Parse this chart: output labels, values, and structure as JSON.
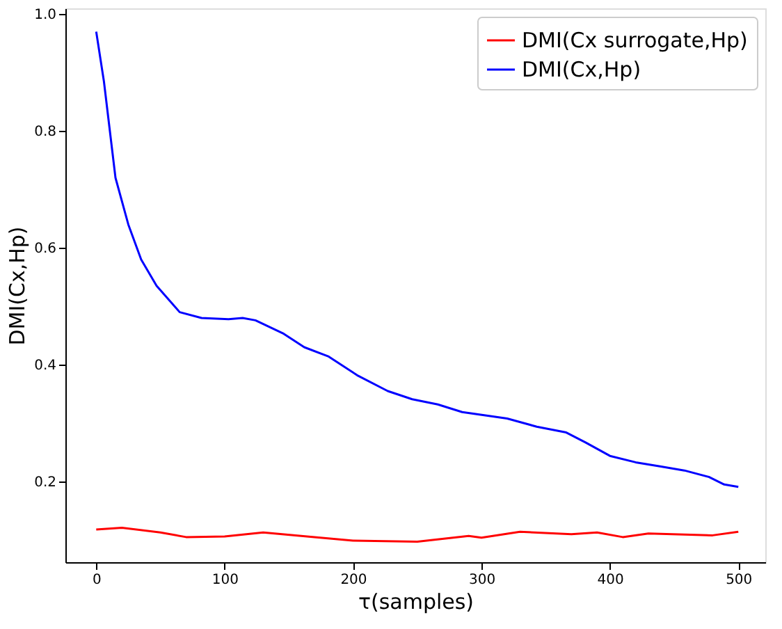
{
  "chart_data": {
    "type": "line",
    "xlabel": "τ(samples)",
    "ylabel": "DMI(Cx,Hp)",
    "xlim": [
      -24,
      521
    ],
    "ylim": [
      0.062,
      1.01
    ],
    "xticks": [
      0,
      100,
      200,
      300,
      400,
      500
    ],
    "yticks": [
      0.2,
      0.4,
      0.6,
      0.8,
      {
        "value": 1,
        "label": "1.0"
      }
    ],
    "line_style": "solid",
    "grid": false,
    "legend": "top right",
    "series": [
      {
        "name": "DMI(Cx surrogate,Hp)",
        "color": "#ff0000",
        "x": [
          0,
          20,
          50,
          70,
          100,
          130,
          170,
          200,
          250,
          290,
          300,
          330,
          370,
          390,
          410,
          430,
          480,
          500
        ],
        "values": [
          0.118,
          0.121,
          0.113,
          0.105,
          0.106,
          0.113,
          0.105,
          0.099,
          0.097,
          0.107,
          0.104,
          0.114,
          0.11,
          0.113,
          0.105,
          0.111,
          0.108,
          0.114
        ]
      },
      {
        "name": "DMI(Cx,Hp)",
        "color": "#0000ff",
        "x": [
          0,
          6,
          15,
          25,
          35,
          47,
          65,
          82,
          103,
          114,
          124,
          146,
          162,
          181,
          204,
          227,
          246,
          266,
          285,
          304,
          320,
          343,
          366,
          381,
          400,
          420,
          439,
          458,
          477,
          489,
          500
        ],
        "values": [
          0.97,
          0.885,
          0.72,
          0.64,
          0.58,
          0.535,
          0.49,
          0.48,
          0.478,
          0.48,
          0.476,
          0.453,
          0.43,
          0.414,
          0.381,
          0.355,
          0.341,
          0.332,
          0.319,
          0.313,
          0.308,
          0.294,
          0.284,
          0.267,
          0.244,
          0.233,
          0.226,
          0.219,
          0.208,
          0.195,
          0.191
        ]
      }
    ]
  }
}
